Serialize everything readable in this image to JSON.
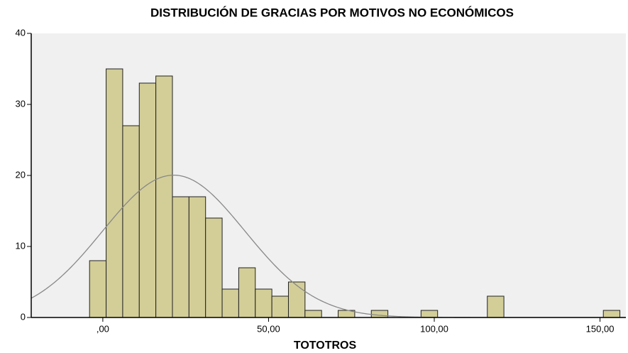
{
  "chart_data": {
    "type": "histogram",
    "title": "DISTRIBUCIÓN  DE GRACIAS POR MOTIVOS NO ECONÓMICOS",
    "x_label": "TOTOTROS",
    "bins": [
      -4,
      1,
      6,
      11,
      16,
      21,
      26,
      31,
      36,
      41,
      46,
      51,
      56,
      61,
      66,
      71,
      76,
      81,
      86,
      91,
      96,
      101,
      106,
      111,
      116,
      121,
      126,
      131,
      136,
      141,
      146,
      151,
      156
    ],
    "values": [
      8,
      35,
      27,
      33,
      34,
      17,
      17,
      14,
      4,
      7,
      4,
      3,
      5,
      1,
      0,
      1,
      0,
      1,
      0,
      0,
      1,
      0,
      0,
      0,
      3,
      0,
      0,
      0,
      0,
      0,
      0,
      1
    ],
    "color": "#d3ce98",
    "normal_curve": {
      "mean": 21.4,
      "sd": 21.5,
      "color": "#888888"
    },
    "xlim": [
      -21.6,
      157.8
    ],
    "ylim": [
      0,
      40
    ],
    "xticks": [
      {
        "value": 0,
        "label": ",00"
      },
      {
        "value": 50,
        "label": "50,00"
      },
      {
        "value": 100,
        "label": "100,00"
      },
      {
        "value": 150,
        "label": "150,00"
      }
    ],
    "yticks": [
      0,
      10,
      20,
      30,
      40
    ]
  }
}
